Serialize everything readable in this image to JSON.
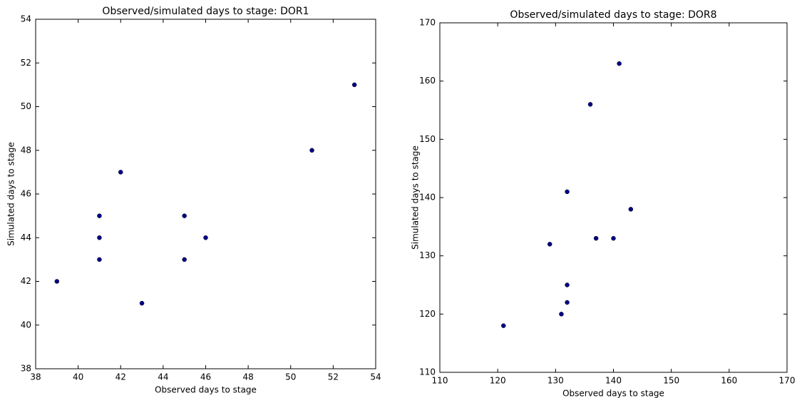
{
  "chart_data": [
    {
      "type": "scatter",
      "title": "Observed/simulated days to stage: DOR1",
      "x_label": "Observed days to stage",
      "y_label": "Simulated days to stage",
      "color": "#00008b",
      "x": [
        39,
        41,
        41,
        41,
        42,
        43,
        45,
        45,
        46,
        51,
        53
      ],
      "values": [
        42,
        45,
        44,
        43,
        47,
        41,
        45,
        43,
        44,
        48,
        51
      ],
      "xlim": [
        38,
        54
      ],
      "xticks": [
        38,
        40,
        42,
        44,
        46,
        48,
        50,
        52,
        54
      ],
      "ylim": [
        38,
        54
      ],
      "yticks": [
        38,
        40,
        42,
        44,
        46,
        48,
        50,
        52,
        54
      ]
    },
    {
      "type": "scatter",
      "title": "Observed/simulated days to stage: DOR8",
      "x_label": "Observed days to stage",
      "y_label": "Simulated days to stage",
      "color": "#00008b",
      "x": [
        121,
        129,
        131,
        132,
        132,
        132,
        136,
        137,
        140,
        141,
        143
      ],
      "values": [
        118,
        132,
        120,
        141,
        125,
        122,
        156,
        133,
        133,
        163,
        138
      ],
      "xlim": [
        110,
        170
      ],
      "xticks": [
        110,
        120,
        130,
        140,
        150,
        160,
        170
      ],
      "ylim": [
        110,
        170
      ],
      "yticks": [
        110,
        120,
        130,
        140,
        150,
        160,
        170
      ]
    }
  ]
}
